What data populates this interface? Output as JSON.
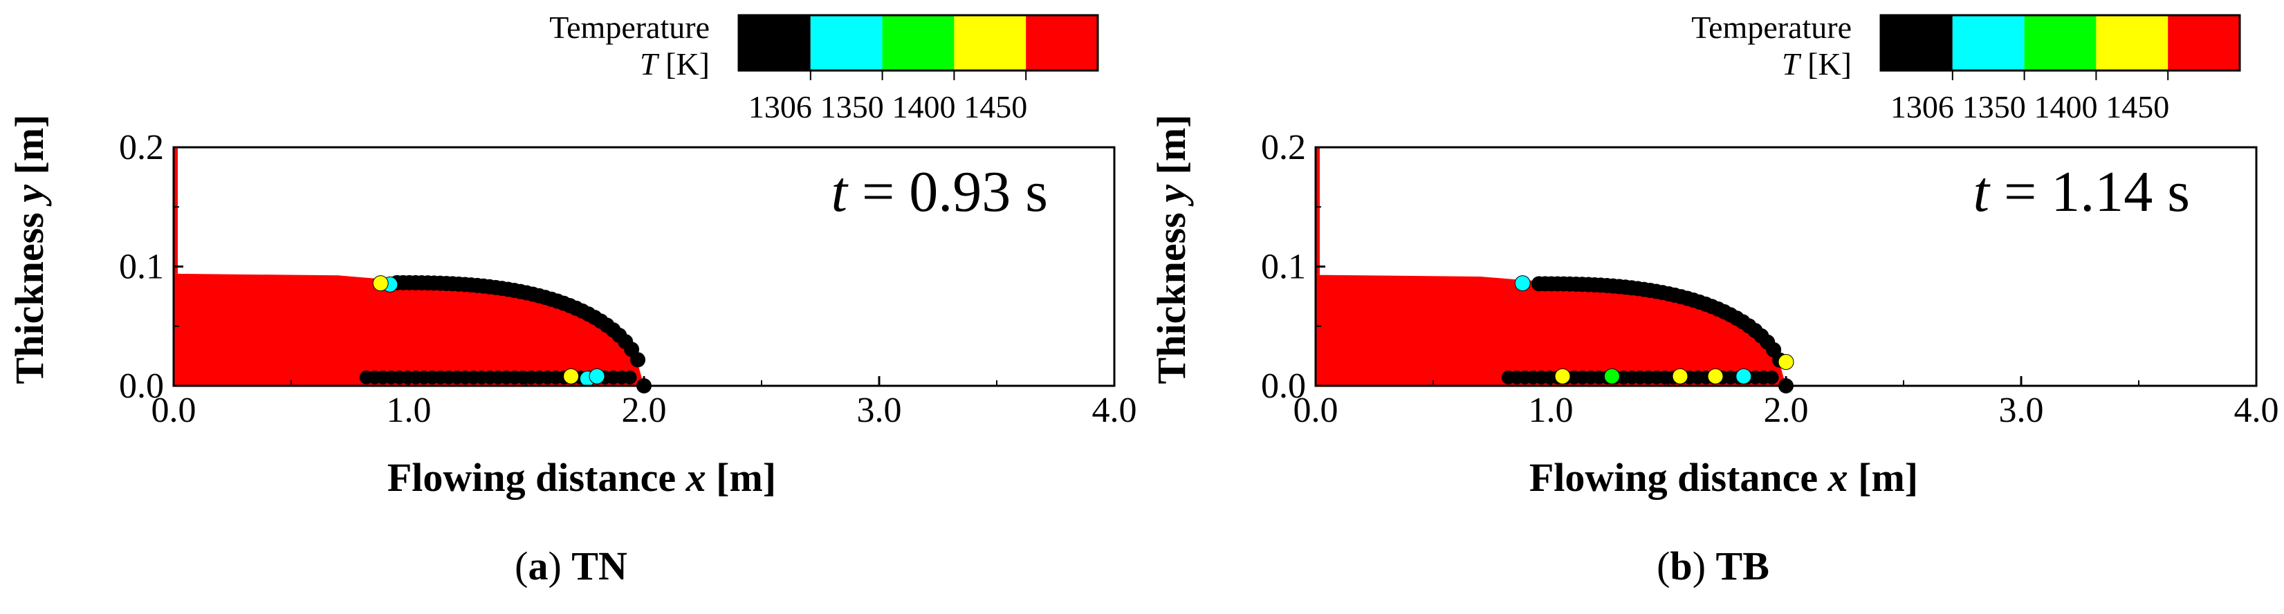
{
  "figure": {
    "panels": [
      {
        "caption_letter": "a",
        "caption_text": "TN",
        "time_label": "t",
        "time_value": "= 0.93 s"
      },
      {
        "caption_letter": "b",
        "caption_text": "TB",
        "time_label": "t",
        "time_value": "= 1.14 s"
      }
    ]
  },
  "colorbar": {
    "title_line1": "Temperature",
    "title_line2_italic": "T",
    "title_line2_unit": "[K]",
    "colors": [
      "#000000",
      "#00ffff",
      "#00ff00",
      "#ffff00",
      "#ff0000"
    ],
    "tick_labels": [
      "1306",
      "1350",
      "1400",
      "1450"
    ]
  },
  "chart_data": [
    {
      "type": "scatter",
      "xlabel_text": "Flowing distance ",
      "xlabel_var": "x",
      "xlabel_unit": " [m]",
      "ylabel_text": "Thickness ",
      "ylabel_var": "y",
      "ylabel_unit": " [m]",
      "xlim": [
        0,
        4.0
      ],
      "ylim": [
        0,
        0.2
      ],
      "xticks": [
        "0.0",
        "1.0",
        "2.0",
        "3.0",
        "4.0"
      ],
      "yticks": [
        "0.0",
        "0.1",
        "0.2"
      ],
      "front_x": 2.0,
      "max_thickness": 0.094,
      "series": [
        {
          "color": "#ff0000",
          "points": [
            [
              0.0,
              0.094
            ],
            [
              0.5,
              0.093
            ],
            [
              0.9,
              0.09
            ],
            [
              1.2,
              0.085
            ],
            [
              1.5,
              0.072
            ],
            [
              1.8,
              0.048
            ],
            [
              1.95,
              0.02
            ],
            [
              2.0,
              0.0
            ]
          ]
        },
        {
          "color": "#000000",
          "points": [
            [
              0.95,
              0.085
            ],
            [
              1.2,
              0.082
            ],
            [
              1.5,
              0.072
            ],
            [
              1.7,
              0.06
            ],
            [
              1.85,
              0.045
            ],
            [
              1.95,
              0.025
            ],
            [
              2.0,
              0.005
            ],
            [
              0.82,
              0.008
            ],
            [
              1.1,
              0.008
            ],
            [
              1.4,
              0.008
            ],
            [
              1.6,
              0.008
            ]
          ]
        },
        {
          "color": "#00ffff",
          "points": [
            [
              0.92,
              0.085
            ],
            [
              1.76,
              0.006
            ],
            [
              1.8,
              0.008
            ]
          ]
        },
        {
          "color": "#ffff00",
          "points": [
            [
              0.88,
              0.086
            ],
            [
              1.69,
              0.008
            ]
          ]
        }
      ]
    },
    {
      "type": "scatter",
      "xlabel_text": "Flowing distance ",
      "xlabel_var": "x",
      "xlabel_unit": " [m]",
      "ylabel_text": "Thickness ",
      "ylabel_var": "y",
      "ylabel_unit": " [m]",
      "xlim": [
        0,
        4.0
      ],
      "ylim": [
        0,
        0.2
      ],
      "xticks": [
        "0.0",
        "1.0",
        "2.0",
        "3.0",
        "4.0"
      ],
      "yticks": [
        "0.0",
        "0.1",
        "0.2"
      ],
      "front_x": 2.0,
      "max_thickness": 0.093,
      "series": [
        {
          "color": "#ff0000",
          "points": [
            [
              0.0,
              0.093
            ],
            [
              0.5,
              0.092
            ],
            [
              0.9,
              0.09
            ],
            [
              1.2,
              0.086
            ],
            [
              1.5,
              0.074
            ],
            [
              1.8,
              0.05
            ],
            [
              1.95,
              0.022
            ],
            [
              2.0,
              0.0
            ]
          ]
        },
        {
          "color": "#000000",
          "points": [
            [
              0.95,
              0.086
            ],
            [
              1.2,
              0.084
            ],
            [
              1.5,
              0.074
            ],
            [
              1.7,
              0.062
            ],
            [
              1.85,
              0.047
            ],
            [
              1.95,
              0.027
            ],
            [
              2.0,
              0.005
            ],
            [
              0.82,
              0.008
            ],
            [
              1.1,
              0.008
            ],
            [
              1.4,
              0.008
            ],
            [
              1.6,
              0.008
            ]
          ]
        },
        {
          "color": "#00ffff",
          "points": [
            [
              0.88,
              0.086
            ],
            [
              1.82,
              0.008
            ]
          ]
        },
        {
          "color": "#ffff00",
          "points": [
            [
              1.05,
              0.008
            ],
            [
              1.55,
              0.008
            ],
            [
              1.7,
              0.008
            ],
            [
              2.0,
              0.02
            ]
          ]
        },
        {
          "color": "#00ff00",
          "points": [
            [
              1.26,
              0.008
            ]
          ]
        }
      ]
    }
  ]
}
